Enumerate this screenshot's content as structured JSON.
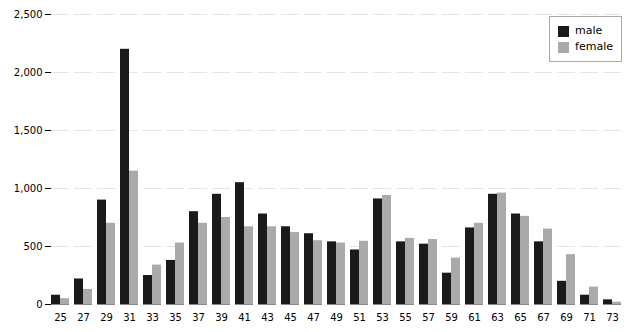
{
  "chart_data": {
    "type": "bar",
    "categories": [
      25,
      27,
      29,
      31,
      33,
      35,
      37,
      39,
      41,
      43,
      45,
      47,
      49,
      51,
      53,
      55,
      57,
      59,
      61,
      63,
      65,
      67,
      69,
      71,
      73
    ],
    "series": [
      {
        "name": "male",
        "color": "#1a1a1a",
        "values": [
          80,
          220,
          900,
          2200,
          250,
          380,
          800,
          950,
          1050,
          780,
          670,
          610,
          540,
          470,
          910,
          540,
          520,
          270,
          660,
          950,
          780,
          540,
          200,
          80,
          40
        ]
      },
      {
        "name": "female",
        "color": "#aaaaaa",
        "values": [
          50,
          130,
          700,
          1150,
          340,
          530,
          700,
          750,
          670,
          670,
          620,
          550,
          530,
          545,
          940,
          570,
          560,
          400,
          700,
          960,
          760,
          650,
          430,
          150,
          20
        ]
      }
    ],
    "ylim": [
      0,
      2500
    ],
    "yticks": [
      0,
      500,
      1000,
      1500,
      2000,
      2500
    ],
    "grid": true,
    "legend": "upper right"
  }
}
